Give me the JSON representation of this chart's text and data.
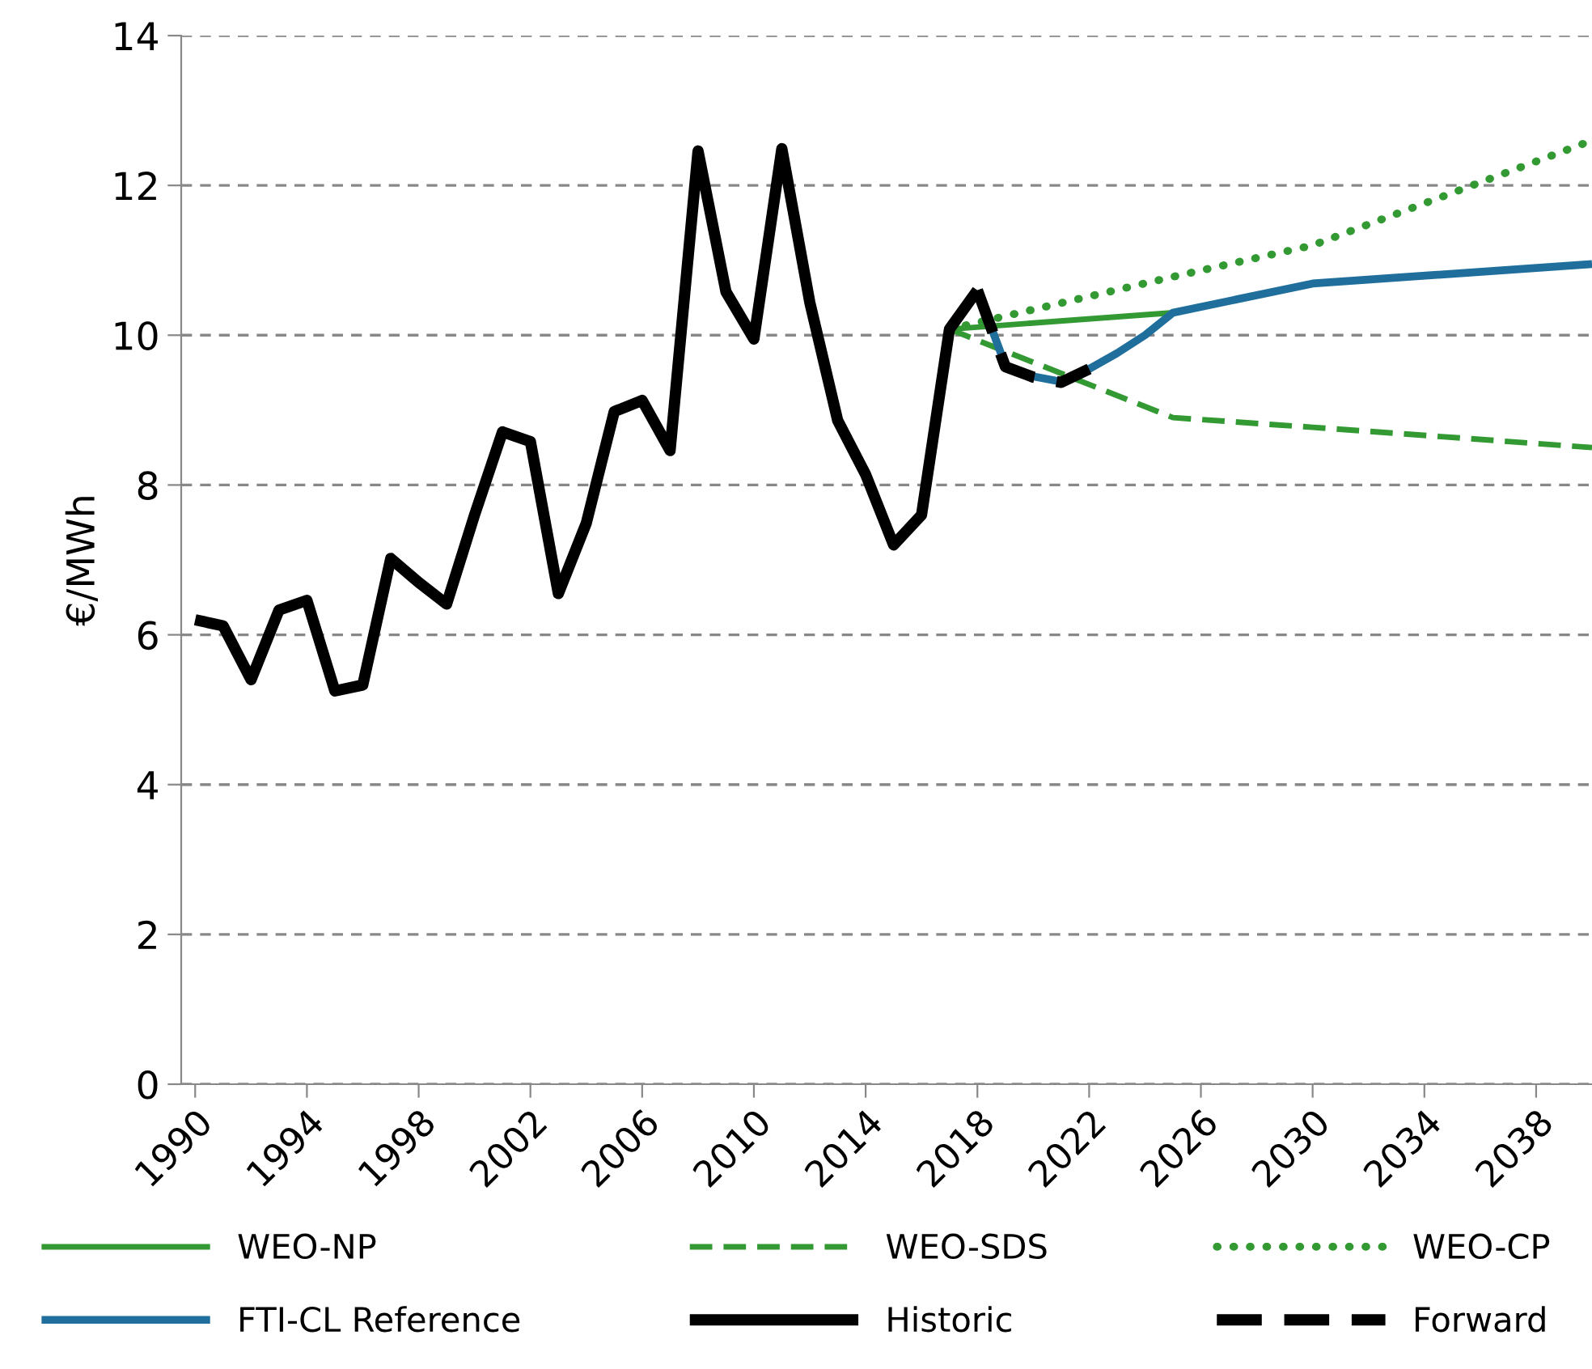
{
  "chart_data": {
    "type": "line",
    "ylabel": "€/MWh",
    "xlim": [
      1989.5,
      2040
    ],
    "ylim": [
      0,
      14
    ],
    "yticks": [
      0,
      2,
      4,
      6,
      8,
      10,
      12,
      14
    ],
    "xticks": [
      1990,
      1994,
      1998,
      2002,
      2006,
      2010,
      2014,
      2018,
      2022,
      2026,
      2030,
      2034,
      2038
    ],
    "grid": "y",
    "legend": "bottom",
    "marker": "none",
    "series": [
      {
        "name": "WEO-NP",
        "color": "#339933",
        "line_style": "solid",
        "x": [
          2017,
          2025
        ],
        "values": [
          10.08,
          10.3
        ]
      },
      {
        "name": "WEO-SDS",
        "color": "#339933",
        "line_style": "dashed",
        "x": [
          2017,
          2025,
          2030,
          2040
        ],
        "values": [
          10.08,
          8.9,
          8.77,
          8.5
        ]
      },
      {
        "name": "WEO-CP",
        "color": "#339933",
        "line_style": "dotted",
        "x": [
          2017,
          2025,
          2030,
          2040
        ],
        "values": [
          10.08,
          10.78,
          11.2,
          12.6
        ]
      },
      {
        "name": "FTI-CL Reference",
        "color": "#1f6e9c",
        "line_style": "solid",
        "x": [
          2018,
          2019,
          2020,
          2021,
          2022,
          2023,
          2024,
          2025,
          2030,
          2040
        ],
        "values": [
          10.6,
          9.6,
          9.45,
          9.38,
          9.55,
          9.76,
          10.0,
          10.3,
          10.69,
          10.95
        ]
      },
      {
        "name": "Historic",
        "color": "#000000",
        "line_style": "solid",
        "x": [
          1990,
          1991,
          1992,
          1993,
          1994,
          1995,
          1996,
          1997,
          1998,
          1999,
          2000,
          2001,
          2002,
          2003,
          2004,
          2005,
          2006,
          2007,
          2008,
          2009,
          2010,
          2011,
          2012,
          2013,
          2014,
          2015,
          2016,
          2017,
          2018
        ],
        "values": [
          6.2,
          6.12,
          5.4,
          6.33,
          6.46,
          5.25,
          5.33,
          7.02,
          6.7,
          6.41,
          7.6,
          8.71,
          8.58,
          6.55,
          7.49,
          8.98,
          9.13,
          8.46,
          12.46,
          10.58,
          9.95,
          12.49,
          10.44,
          8.86,
          8.14,
          7.2,
          7.6,
          10.08,
          10.6
        ]
      },
      {
        "name": "Forward",
        "color": "#000000",
        "line_style": "dashed",
        "x": [
          2018,
          2019,
          2020,
          2021,
          2022
        ],
        "values": [
          10.6,
          9.58,
          9.44,
          9.37,
          9.55
        ]
      }
    ]
  }
}
